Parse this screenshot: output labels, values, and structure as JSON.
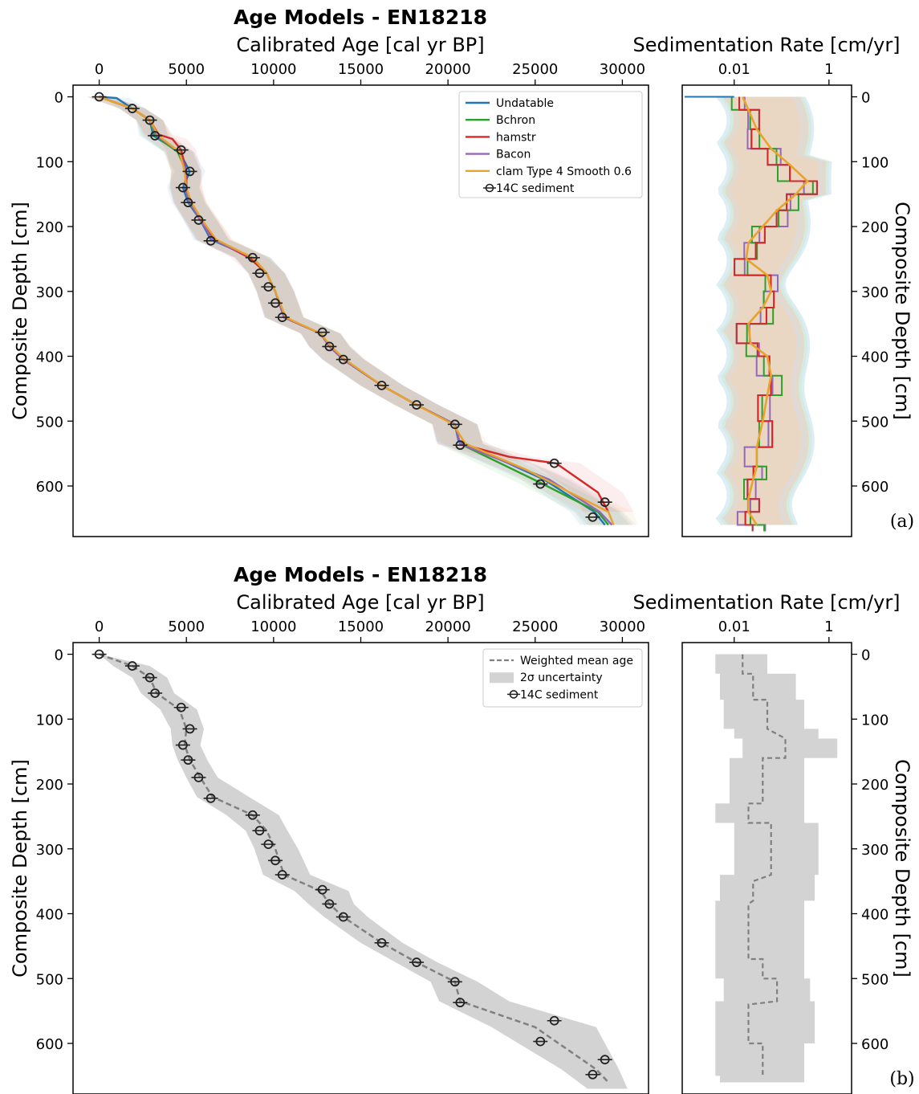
{
  "chart_data": [
    {
      "panel": "(a)",
      "type": "line",
      "title": "Age Models - EN18218",
      "xlabel": "Calibrated Age [cal yr BP]",
      "ylabel": "Composite Depth [cm]",
      "xlim": [
        -1500,
        31500
      ],
      "ylim": [
        678,
        -18
      ],
      "y_inverted": true,
      "xticks": [
        0,
        5000,
        10000,
        15000,
        20000,
        25000,
        30000
      ],
      "yticks": [
        0,
        100,
        200,
        300,
        400,
        500,
        600
      ],
      "x_axis_position": "top",
      "legend_position": "top-right",
      "grid": false,
      "legend": [
        "Undatable",
        "Bchron",
        "hamstr",
        "Bacon",
        "clam Type 4 Smooth 0.6",
        "14C sediment"
      ],
      "colors": {
        "Undatable": "#1f77b4",
        "Bchron": "#2ca02c",
        "hamstr": "#d62728",
        "Bacon": "#9467bd",
        "clam Type 4 Smooth 0.6": "#e8a32b",
        "14C sediment": "#333333"
      },
      "series": [
        {
          "name": "Undatable",
          "x": [
            0,
            1000,
            1900,
            2900,
            3100,
            4600,
            5200,
            4800,
            5100,
            5800,
            6400,
            8800,
            9600,
            10100,
            10600,
            12700,
            13200,
            14000,
            16200,
            18200,
            20400,
            20600,
            25500,
            28400,
            29000
          ],
          "y": [
            0,
            2,
            18,
            36,
            60,
            85,
            115,
            140,
            163,
            190,
            220,
            248,
            272,
            300,
            340,
            365,
            385,
            405,
            445,
            475,
            505,
            530,
            590,
            640,
            660
          ]
        },
        {
          "name": "Bchron",
          "x": [
            0,
            1900,
            2900,
            3200,
            4500,
            5000,
            4900,
            5200,
            5800,
            6500,
            8800,
            9600,
            10100,
            10600,
            12700,
            13200,
            14000,
            16200,
            18200,
            20400,
            20700,
            25300,
            28600,
            29200
          ],
          "y": [
            0,
            18,
            36,
            60,
            85,
            115,
            140,
            163,
            190,
            220,
            248,
            272,
            300,
            340,
            365,
            385,
            405,
            445,
            475,
            505,
            535,
            595,
            640,
            660
          ]
        },
        {
          "name": "hamstr",
          "x": [
            0,
            1900,
            2900,
            3400,
            4200,
            4700,
            5000,
            5000,
            5200,
            5900,
            6600,
            8600,
            9600,
            10100,
            10600,
            12700,
            13200,
            14000,
            16200,
            18200,
            20400,
            20700,
            23500,
            26200,
            28600,
            29200
          ],
          "y": [
            0,
            18,
            36,
            58,
            65,
            82,
            115,
            140,
            163,
            190,
            220,
            248,
            272,
            300,
            340,
            365,
            385,
            405,
            445,
            475,
            505,
            535,
            555,
            565,
            610,
            640
          ]
        },
        {
          "name": "Bacon",
          "x": [
            0,
            1900,
            2900,
            3300,
            4600,
            5000,
            4900,
            5200,
            5800,
            6500,
            8800,
            9600,
            10100,
            10600,
            12700,
            13200,
            14000,
            16200,
            18200,
            20400,
            20700,
            25800,
            28700,
            29400
          ],
          "y": [
            0,
            18,
            36,
            60,
            85,
            115,
            140,
            163,
            190,
            220,
            248,
            272,
            300,
            340,
            365,
            385,
            405,
            445,
            475,
            505,
            535,
            590,
            640,
            660
          ]
        },
        {
          "name": "clam Type 4 Smooth 0.6",
          "x": [
            0,
            1900,
            2900,
            3400,
            4600,
            4900,
            5000,
            5300,
            5900,
            6700,
            8800,
            9600,
            10100,
            10700,
            12700,
            13300,
            14100,
            16200,
            18200,
            20300,
            21000,
            24500,
            27000,
            29200,
            29500
          ],
          "y": [
            0,
            18,
            36,
            60,
            85,
            115,
            140,
            163,
            190,
            220,
            248,
            272,
            300,
            340,
            365,
            385,
            405,
            445,
            475,
            505,
            535,
            575,
            610,
            640,
            660
          ]
        }
      ],
      "points_14C_sediment": {
        "x": [
          0,
          1900,
          2900,
          3200,
          4700,
          5200,
          4800,
          5100,
          5700,
          6400,
          8800,
          9200,
          9700,
          10100,
          10500,
          12800,
          13200,
          14000,
          16200,
          18200,
          20400,
          20700,
          26100,
          25300,
          29000,
          28300
        ],
        "y": [
          0,
          18,
          36,
          60,
          82,
          115,
          140,
          163,
          190,
          222,
          248,
          272,
          293,
          318,
          340,
          363,
          385,
          405,
          445,
          475,
          505,
          537,
          565,
          597,
          625,
          648
        ]
      }
    },
    {
      "panel": "(a)",
      "type": "line",
      "xlabel": "Sedimentation Rate [cm/yr]",
      "ylabel": "Composite Depth [cm]",
      "x_scale": "log",
      "xlim": [
        0.0008,
        3
      ],
      "ylim": [
        678,
        -18
      ],
      "y_inverted": true,
      "xticks": [
        0.01,
        1
      ],
      "yticks": [
        0,
        100,
        200,
        300,
        400,
        500,
        600
      ],
      "x_axis_position": "top",
      "y_axis_position": "right",
      "series": [
        {
          "name": "clam Type 4 Smooth 0.6",
          "x": [
            0.015,
            0.02,
            0.03,
            0.06,
            0.15,
            0.35,
            0.2,
            0.08,
            0.04,
            0.02,
            0.018,
            0.05,
            0.06,
            0.04,
            0.02,
            0.022,
            0.05,
            0.06,
            0.05,
            0.04,
            0.03,
            0.03,
            0.025,
            0.02,
            0.02,
            0.03
          ],
          "y": [
            0,
            20,
            50,
            80,
            105,
            130,
            150,
            175,
            200,
            225,
            250,
            275,
            300,
            325,
            350,
            380,
            400,
            430,
            460,
            500,
            540,
            570,
            590,
            620,
            640,
            660
          ]
        }
      ]
    },
    {
      "panel": "(b)",
      "type": "line",
      "title": "Age Models - EN18218",
      "xlabel": "Calibrated Age [cal yr BP]",
      "ylabel": "Composite Depth [cm]",
      "xlim": [
        -1500,
        31500
      ],
      "ylim": [
        678,
        -18
      ],
      "y_inverted": true,
      "xticks": [
        0,
        5000,
        10000,
        15000,
        20000,
        25000,
        30000
      ],
      "yticks": [
        0,
        100,
        200,
        300,
        400,
        500,
        600
      ],
      "x_axis_position": "top",
      "legend_position": "top-right",
      "grid": false,
      "legend": [
        "Weighted mean age",
        "2σ uncertainty",
        "14C sediment"
      ],
      "colors": {
        "Weighted mean age": "#808080",
        "2σ uncertainty": "#d3d3d3",
        "14C sediment": "#333333"
      },
      "mean_age": {
        "x": [
          0,
          1900,
          2900,
          3300,
          4600,
          5000,
          4900,
          5200,
          5800,
          6500,
          8800,
          9600,
          10100,
          10600,
          12700,
          13200,
          14000,
          16200,
          18200,
          20400,
          20700,
          25000,
          28500,
          29200
        ],
        "y": [
          0,
          18,
          36,
          60,
          85,
          115,
          140,
          163,
          190,
          220,
          248,
          272,
          300,
          340,
          365,
          385,
          405,
          445,
          475,
          505,
          535,
          575,
          640,
          660
        ]
      },
      "uncertainty_band": {
        "y": [
          0,
          18,
          36,
          60,
          85,
          115,
          140,
          163,
          190,
          220,
          248,
          272,
          300,
          340,
          365,
          385,
          405,
          445,
          475,
          505,
          535,
          575,
          640,
          670
        ],
        "lower": [
          0,
          800,
          1900,
          2400,
          3500,
          4100,
          4200,
          4500,
          5000,
          5600,
          7300,
          8400,
          8900,
          9400,
          11200,
          12000,
          12900,
          15000,
          17000,
          19000,
          19500,
          22500,
          26500,
          28000
        ],
        "upper": [
          0,
          2900,
          3900,
          4300,
          5600,
          6000,
          5800,
          6200,
          6800,
          8600,
          10300,
          10800,
          11400,
          12100,
          14300,
          14600,
          15400,
          17400,
          19400,
          21700,
          23500,
          28500,
          29800,
          30300
        ]
      },
      "points_14C_sediment": {
        "x": [
          0,
          1900,
          2900,
          3200,
          4700,
          5200,
          4800,
          5100,
          5700,
          6400,
          8800,
          9200,
          9700,
          10100,
          10500,
          12800,
          13200,
          14000,
          16200,
          18200,
          20400,
          20700,
          26100,
          25300,
          29000,
          28300
        ],
        "y": [
          0,
          18,
          36,
          60,
          82,
          115,
          140,
          163,
          190,
          222,
          248,
          272,
          293,
          318,
          340,
          363,
          385,
          405,
          445,
          475,
          505,
          537,
          565,
          597,
          625,
          648
        ]
      }
    },
    {
      "panel": "(b)",
      "type": "line",
      "xlabel": "Sedimentation Rate [cm/yr]",
      "ylabel": "Composite Depth [cm]",
      "x_scale": "log",
      "xlim": [
        0.0008,
        3
      ],
      "ylim": [
        678,
        -18
      ],
      "y_inverted": true,
      "xticks": [
        0.01,
        1
      ],
      "yticks": [
        0,
        100,
        200,
        300,
        400,
        500,
        600
      ],
      "x_axis_position": "top",
      "y_axis_position": "right",
      "mean_rate": {
        "x": [
          0.015,
          0.015,
          0.025,
          0.025,
          0.05,
          0.05,
          0.12,
          0.12,
          0.04,
          0.04,
          0.02,
          0.02,
          0.06,
          0.06,
          0.025,
          0.025,
          0.02,
          0.02,
          0.04,
          0.04,
          0.08,
          0.08,
          0.02,
          0.02,
          0.04,
          0.04
        ],
        "y": [
          0,
          30,
          30,
          70,
          70,
          115,
          130,
          160,
          160,
          230,
          230,
          260,
          260,
          340,
          350,
          380,
          385,
          470,
          470,
          500,
          500,
          535,
          540,
          600,
          600,
          650
        ]
      },
      "uncertainty_band": {
        "y": [
          0,
          30,
          70,
          115,
          130,
          160,
          230,
          260,
          340,
          380,
          470,
          500,
          535,
          600,
          650
        ],
        "lower": [
          0.004,
          0.005,
          0.006,
          0.01,
          0.015,
          0.008,
          0.004,
          0.01,
          0.005,
          0.004,
          0.004,
          0.006,
          0.004,
          0.004,
          0.005
        ],
        "upper": [
          0.05,
          0.2,
          0.3,
          0.6,
          1.5,
          0.3,
          0.3,
          0.6,
          0.5,
          0.3,
          0.3,
          0.4,
          0.5,
          0.3,
          0.3
        ]
      }
    }
  ],
  "panel_labels": [
    "(a)",
    "(b)"
  ]
}
